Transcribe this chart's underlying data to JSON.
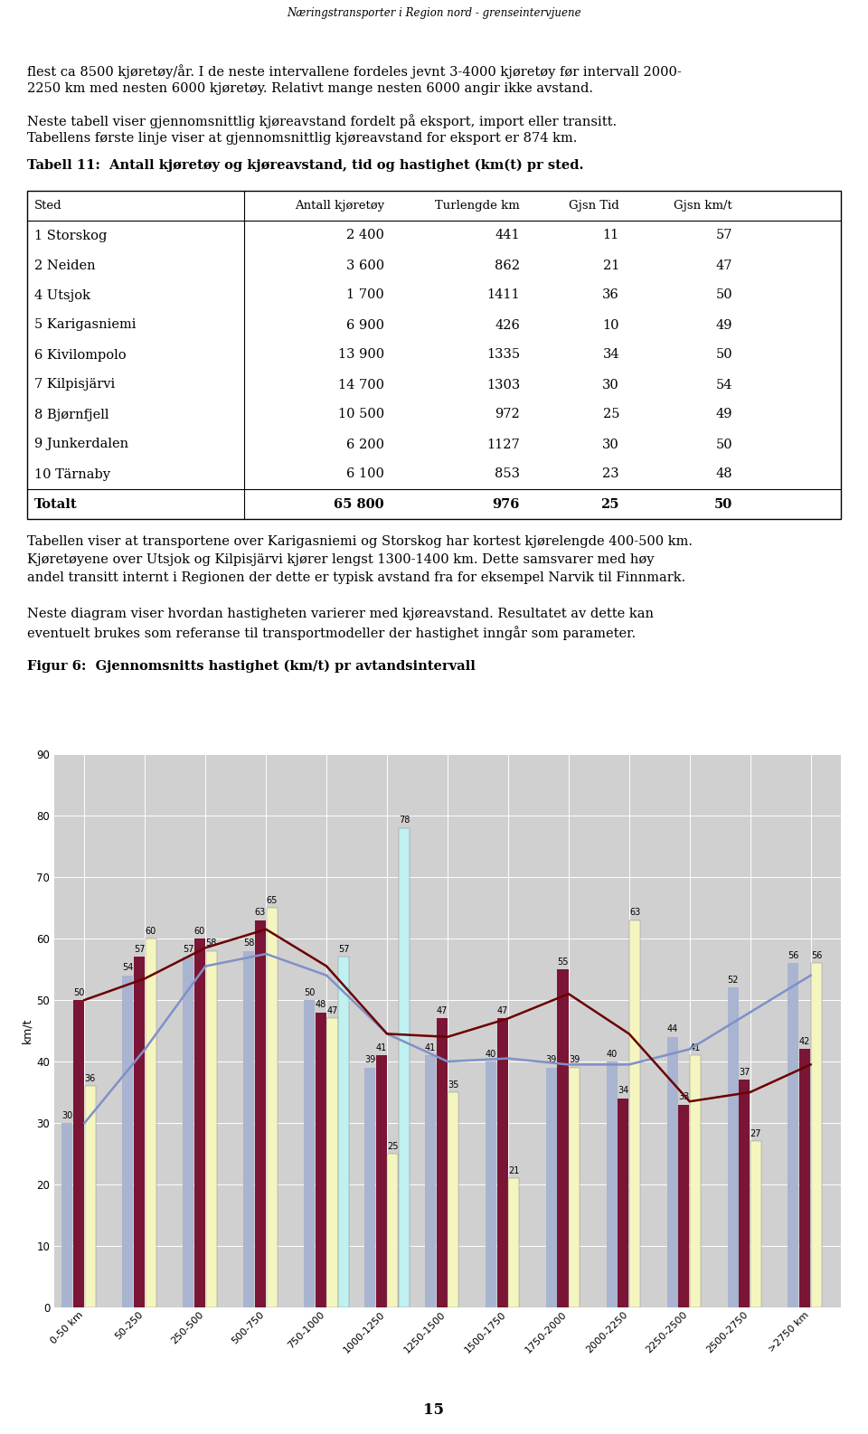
{
  "header": "Næringstransporter i Region nord - grenseintervjuene",
  "bold_title": "Tabell 11:  Antall kjøretøy og kjøreavstand, tid og hastighet (km(t) pr sted.",
  "table_headers": [
    "Sted",
    "Antall kjøretøy",
    "Turlengde km",
    "Gjsn Tid",
    "Gjsn km/t"
  ],
  "table_rows": [
    [
      "1 Storskog",
      "2 400",
      "441",
      "11",
      "57"
    ],
    [
      "2 Neiden",
      "3 600",
      "862",
      "21",
      "47"
    ],
    [
      "4 Utsjok",
      "1 700",
      "1411",
      "36",
      "50"
    ],
    [
      "5 Karigasniemi",
      "6 900",
      "426",
      "10",
      "49"
    ],
    [
      "6 Kivilompolo",
      "13 900",
      "1335",
      "34",
      "50"
    ],
    [
      "7 Kilpisjärvi",
      "14 700",
      "1303",
      "30",
      "54"
    ],
    [
      "8 Bjørnfjell",
      "10 500",
      "972",
      "25",
      "49"
    ],
    [
      "9 Junkerdalen",
      "6 200",
      "1127",
      "30",
      "50"
    ],
    [
      "10 Tärnaby",
      "6 100",
      "853",
      "23",
      "48"
    ],
    [
      "Totalt",
      "65 800",
      "976",
      "25",
      "50"
    ]
  ],
  "chart_title": "Figur 6:  Gjennomsnitts hastighet (km/t) pr avtandsintervall",
  "chart_ylabel": "km/t",
  "categories": [
    "0-50 km",
    "50-250",
    "250-500",
    "500-750",
    "750-1000",
    "1000-1250",
    "1250-1500",
    "1500-1750",
    "1750-2000",
    "2000-2250",
    "2250-2500",
    "2500-2750",
    ">2750 km"
  ],
  "semitrailer": [
    30,
    54,
    57,
    58,
    50,
    39,
    41,
    40,
    39,
    40,
    44,
    52,
    56
  ],
  "vogntog": [
    50,
    57,
    60,
    63,
    48,
    41,
    47,
    47,
    55,
    34,
    33,
    37,
    42
  ],
  "lastebil": [
    36,
    60,
    58,
    65,
    47,
    25,
    35,
    21,
    39,
    63,
    41,
    27,
    56
  ],
  "annet": [
    null,
    null,
    null,
    null,
    57,
    78,
    null,
    null,
    null,
    null,
    null,
    null,
    null
  ],
  "color_semitrailer": "#a8b4d0",
  "color_vogntog": "#7b1535",
  "color_lastebil": "#f5f5c0",
  "color_annet": "#c0f0f0",
  "color_line_semi": "#8090c8",
  "color_line_vogn": "#6b0000",
  "page_number": "15",
  "background_color": "#d0d0d0"
}
